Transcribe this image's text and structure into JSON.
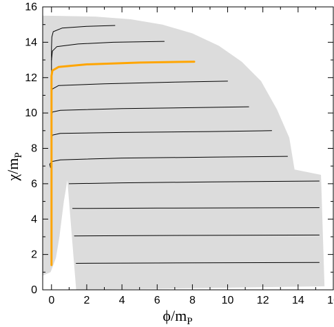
{
  "chart_data": {
    "type": "line",
    "title": "",
    "xlabel": {
      "symbol": "ϕ/m",
      "subscript": "P"
    },
    "ylabel": {
      "symbol": "χ/m",
      "subscript": "P"
    },
    "xlim": [
      -0.5,
      16
    ],
    "ylim": [
      0,
      16
    ],
    "xticks": [
      0,
      2,
      4,
      6,
      8,
      10,
      12,
      14,
      16
    ],
    "yticks": [
      0,
      2,
      4,
      6,
      8,
      10,
      12,
      14,
      16
    ],
    "grid": false,
    "legend": "none",
    "colors": {
      "region": "#dcdcdc",
      "trajectory": "#000000",
      "highlight": "#ffa500",
      "axes": "#000000"
    },
    "region": [
      [
        -0.5,
        15.5
      ],
      [
        2.5,
        15.45
      ],
      [
        4.5,
        15.3
      ],
      [
        6.3,
        15.0
      ],
      [
        8.0,
        14.5
      ],
      [
        9.5,
        13.8
      ],
      [
        10.8,
        12.9
      ],
      [
        11.9,
        11.8
      ],
      [
        12.8,
        10.2
      ],
      [
        13.5,
        8.6
      ],
      [
        13.8,
        6.8
      ],
      [
        15.3,
        6.5
      ],
      [
        15.5,
        0.2
      ],
      [
        1.4,
        0
      ],
      [
        0.9,
        6.2
      ],
      [
        0.7,
        5.0
      ],
      [
        0.45,
        3.0
      ],
      [
        0.25,
        1.8
      ],
      [
        -0.05,
        1.0
      ],
      [
        -0.5,
        0.8
      ]
    ],
    "series": [
      {
        "highlight": false,
        "points": [
          [
            0.0,
            1.5
          ],
          [
            0.0,
            13.7
          ],
          [
            0.02,
            14.3
          ],
          [
            0.1,
            14.6
          ],
          [
            0.6,
            14.8
          ],
          [
            2.0,
            14.9
          ],
          [
            3.6,
            14.95
          ]
        ]
      },
      {
        "highlight": false,
        "points": [
          [
            0.0,
            13.0
          ],
          [
            0.05,
            13.5
          ],
          [
            0.3,
            13.75
          ],
          [
            1.5,
            13.9
          ],
          [
            3.5,
            14.0
          ],
          [
            6.4,
            14.05
          ]
        ]
      },
      {
        "highlight": true,
        "points": [
          [
            0.0,
            1.4
          ],
          [
            0.0,
            12.1
          ],
          [
            0.05,
            12.4
          ],
          [
            0.4,
            12.6
          ],
          [
            2.0,
            12.75
          ],
          [
            5.0,
            12.85
          ],
          [
            8.1,
            12.9
          ]
        ]
      },
      {
        "highlight": false,
        "points": [
          [
            0.0,
            11.0
          ],
          [
            0.04,
            11.35
          ],
          [
            0.4,
            11.55
          ],
          [
            3.0,
            11.65
          ],
          [
            7.0,
            11.75
          ],
          [
            10.0,
            11.8
          ]
        ]
      },
      {
        "highlight": false,
        "points": [
          [
            0.0,
            9.8
          ],
          [
            0.05,
            10.05
          ],
          [
            0.5,
            10.15
          ],
          [
            4.0,
            10.25
          ],
          [
            8.0,
            10.3
          ],
          [
            11.2,
            10.35
          ]
        ]
      },
      {
        "highlight": false,
        "points": [
          [
            0.0,
            8.5
          ],
          [
            0.05,
            8.75
          ],
          [
            0.5,
            8.85
          ],
          [
            4.0,
            8.9
          ],
          [
            9.0,
            8.95
          ],
          [
            12.5,
            9.0
          ]
        ]
      },
      {
        "highlight": false,
        "points": [
          [
            -0.05,
            6.9
          ],
          [
            -0.1,
            7.1
          ],
          [
            0.0,
            7.25
          ],
          [
            0.5,
            7.35
          ],
          [
            4.0,
            7.45
          ],
          [
            9.0,
            7.5
          ],
          [
            13.4,
            7.55
          ]
        ]
      },
      {
        "highlight": false,
        "points": [
          [
            1.0,
            6.0
          ],
          [
            4.0,
            6.05
          ],
          [
            9.0,
            6.1
          ],
          [
            15.2,
            6.15
          ]
        ]
      },
      {
        "highlight": false,
        "points": [
          [
            1.2,
            4.6
          ],
          [
            6.0,
            4.62
          ],
          [
            15.2,
            4.65
          ]
        ]
      },
      {
        "highlight": false,
        "points": [
          [
            1.3,
            3.05
          ],
          [
            6.0,
            3.07
          ],
          [
            15.2,
            3.1
          ]
        ]
      },
      {
        "highlight": false,
        "points": [
          [
            1.4,
            1.5
          ],
          [
            6.0,
            1.52
          ],
          [
            15.2,
            1.55
          ]
        ]
      }
    ]
  }
}
